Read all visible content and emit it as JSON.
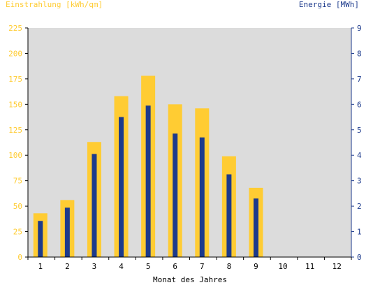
{
  "chart_data": {
    "type": "bar",
    "xlabel": "Monat des Jahres",
    "ylabel_left": "Einstrahlung [kWh/qm]",
    "ylabel_right": "Energie [MWh]",
    "categories": [
      "1",
      "2",
      "3",
      "4",
      "5",
      "6",
      "7",
      "8",
      "9",
      "10",
      "11",
      "12"
    ],
    "ylim_left": [
      0,
      225
    ],
    "ylim_right": [
      0,
      9
    ],
    "yticks_left": [
      0,
      25,
      50,
      75,
      100,
      125,
      150,
      175,
      200,
      225
    ],
    "yticks_right": [
      0,
      1,
      2,
      3,
      4,
      5,
      6,
      7,
      8,
      9
    ],
    "grid": false,
    "series": [
      {
        "name": "Einstrahlung [kWh/qm]",
        "axis": "left",
        "color": "#ffcc33",
        "values": [
          43,
          56,
          113,
          158,
          178,
          150,
          146,
          99,
          68,
          null,
          null,
          null
        ]
      },
      {
        "name": "Energie [MWh]",
        "axis": "right",
        "color": "#1c3a8c",
        "values": [
          1.42,
          1.94,
          4.05,
          5.5,
          5.95,
          4.85,
          4.7,
          3.25,
          2.3,
          null,
          null,
          null
        ]
      }
    ],
    "colors": {
      "left_axis_text": "#ffcc33",
      "right_axis_text": "#1c3a8c",
      "plot_background": "#dcdcdc"
    }
  }
}
